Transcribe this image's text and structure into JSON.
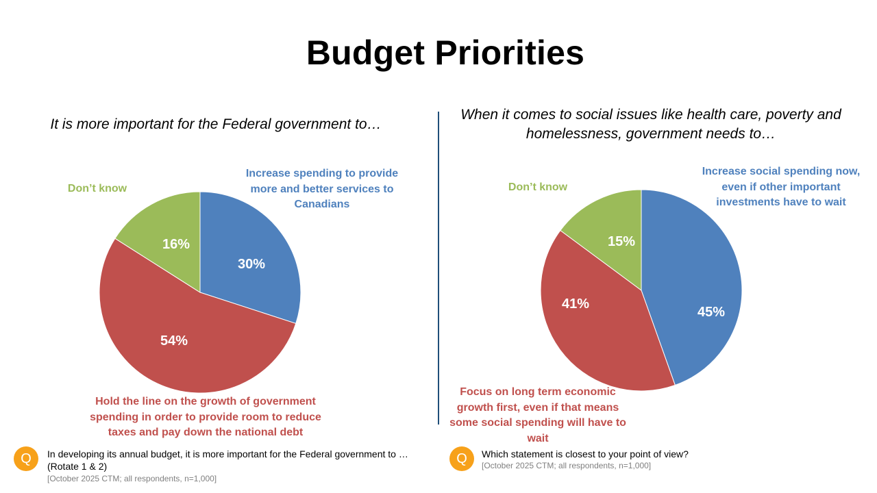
{
  "title": "Budget Priorities",
  "colors": {
    "blue": "#4f81bd",
    "red": "#c0504d",
    "green": "#9bbb59",
    "icon": "#f7a11a",
    "divider": "#1f4e79"
  },
  "chart_data": [
    {
      "type": "pie",
      "title": "It is more important for the Federal government to…",
      "slices": [
        {
          "label": "Increase spending to provide more and better services to Canadians",
          "value": 30,
          "display": "30%",
          "color": "#4f81bd"
        },
        {
          "label": "Hold the line on the growth of government spending in order to provide room to reduce taxes and pay down the national debt",
          "value": 54,
          "display": "54%",
          "color": "#c0504d"
        },
        {
          "label": "Don’t know",
          "value": 16,
          "display": "16%",
          "color": "#9bbb59"
        }
      ]
    },
    {
      "type": "pie",
      "title": "When it comes to social issues like health care, poverty and homelessness, government needs to…",
      "slices": [
        {
          "label": "Increase social spending now, even if other important investments have to wait",
          "value": 45,
          "display": "45%",
          "color": "#4f81bd"
        },
        {
          "label": "Focus on long term economic growth first, even if that means some social spending will have to wait",
          "value": 41,
          "display": "41%",
          "color": "#c0504d"
        },
        {
          "label": "Don’t know",
          "value": 15,
          "display": "15%",
          "color": "#9bbb59"
        }
      ]
    }
  ],
  "footer": {
    "left": {
      "icon_letter": "Q",
      "icon": "question-icon",
      "text_line1": "In developing its annual budget, it is more important for the Federal government to …",
      "text_line2": "(Rotate 1 & 2)",
      "source": "[October 2025 CTM; all respondents, n=1,000]"
    },
    "right": {
      "icon_letter": "Q",
      "icon": "question-icon",
      "text_line1": "Which statement is closest to your point of view?",
      "source": "[October 2025 CTM; all respondents, n=1,000]"
    }
  }
}
